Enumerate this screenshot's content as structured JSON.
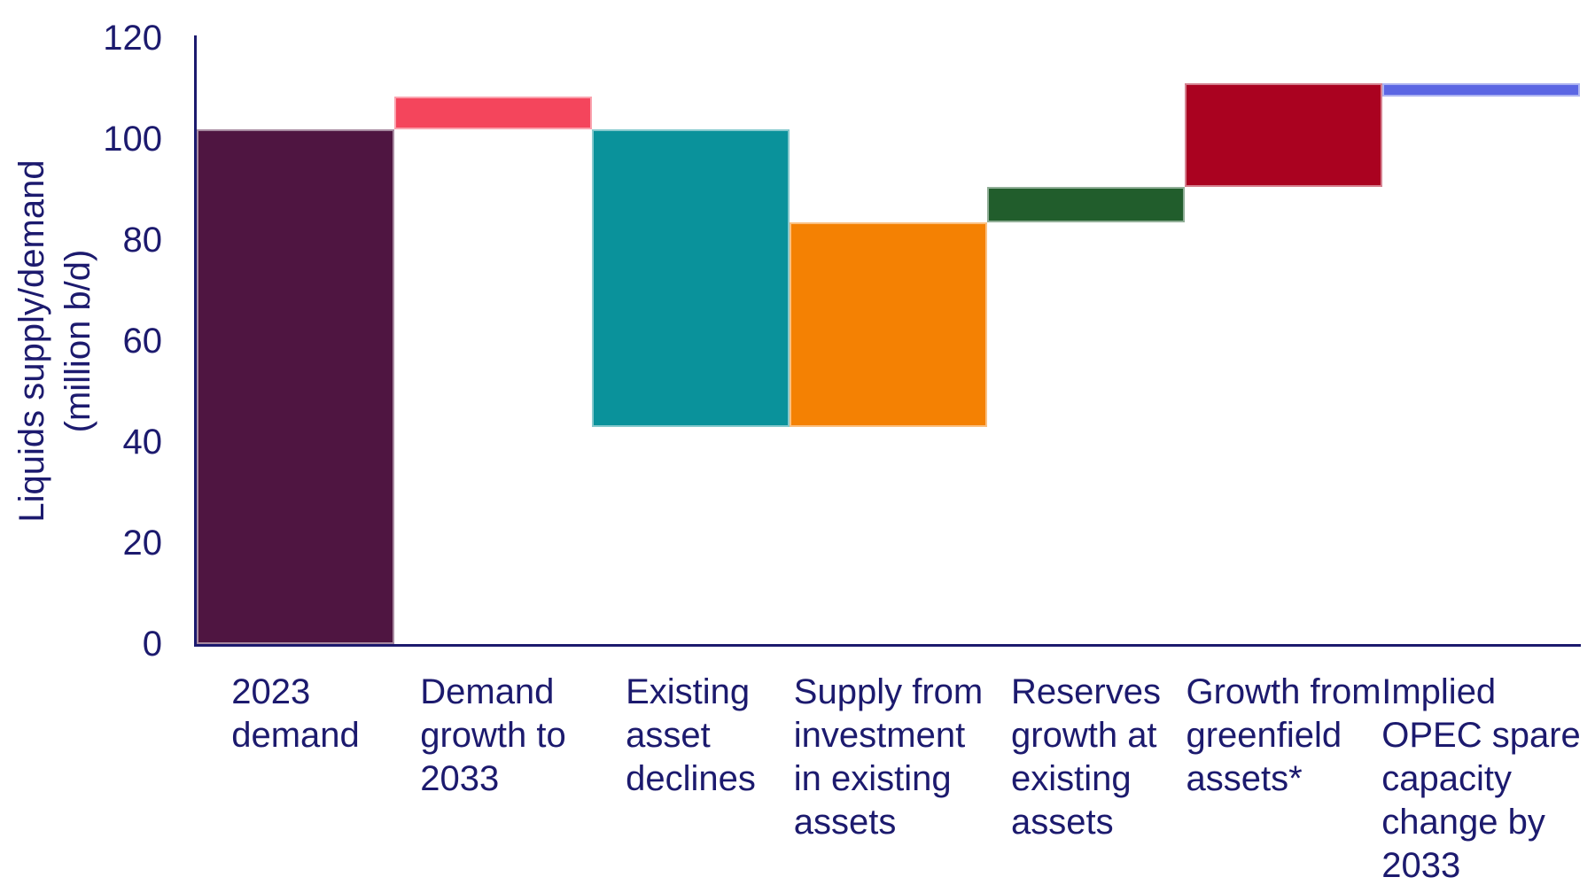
{
  "page": {
    "background": "#ffffff",
    "text_color": "#1C1A6E"
  },
  "chart_data": {
    "type": "bar",
    "subtype": "waterfall",
    "title": "",
    "xlabel": "",
    "ylabel": "Liquids supply/demand (million b/d)",
    "ylabel_lines": [
      "Liquids supply/demand",
      "(million b/d)"
    ],
    "ylim": [
      0,
      120
    ],
    "yticks": [
      0,
      20,
      40,
      60,
      80,
      100,
      120
    ],
    "grid": false,
    "legend": "none",
    "axis_color": "#1C1A6E",
    "categories": [
      "2023 demand",
      "Demand growth to 2033",
      "Existing asset declines",
      "Supply from investment in existing assets",
      "Reserves growth at existing assets",
      "Growth from greenfield assets*",
      "Implied OPEC spare capacity change by 2033"
    ],
    "bars": [
      {
        "slug": "2023-demand",
        "label": "2023 demand",
        "label_lines": [
          "2023",
          "demand"
        ],
        "start": 0,
        "end": 102,
        "change": 102,
        "role": "total",
        "color": "#4F1541"
      },
      {
        "slug": "demand-growth-to-2033",
        "label": "Demand growth to 2033",
        "label_lines": [
          "Demand",
          "growth to",
          "2033"
        ],
        "start": 102,
        "end": 108.5,
        "change": 6.5,
        "role": "increase",
        "color": "#F4455C"
      },
      {
        "slug": "existing-asset-declines",
        "label": "Existing asset declines",
        "label_lines": [
          "Existing",
          "asset",
          "declines"
        ],
        "start": 102,
        "end": 43,
        "change": -59,
        "role": "decrease",
        "color": "#0A929B"
      },
      {
        "slug": "supply-from-investment-in-existing-assets",
        "label": "Supply from investment in existing assets",
        "label_lines": [
          "Supply from",
          "investment",
          "in existing",
          "assets"
        ],
        "start": 43,
        "end": 83.5,
        "change": 40.5,
        "role": "increase",
        "color": "#F48103"
      },
      {
        "slug": "reserves-growth-at-existing-assets",
        "label": "Reserves growth at existing assets",
        "label_lines": [
          "Reserves",
          "growth at",
          "existing",
          "assets"
        ],
        "start": 83.5,
        "end": 90.5,
        "change": 7,
        "role": "increase",
        "color": "#215D2C"
      },
      {
        "slug": "growth-from-greenfield-assets",
        "label": "Growth from greenfield assets*",
        "label_lines": [
          "Growth from",
          "greenfield",
          "assets*"
        ],
        "start": 90.5,
        "end": 111,
        "change": 20.5,
        "role": "increase",
        "color": "#AA0220"
      },
      {
        "slug": "implied-opec-spare-capacity-change-by-2033",
        "label": "Implied OPEC spare capacity change by 2033",
        "label_lines": [
          "Implied",
          "OPEC spare",
          "capacity",
          "change by",
          "2033"
        ],
        "start": 108.5,
        "end": 111,
        "change": 2.5,
        "role": "increase",
        "color": "#5B66E3"
      }
    ]
  }
}
